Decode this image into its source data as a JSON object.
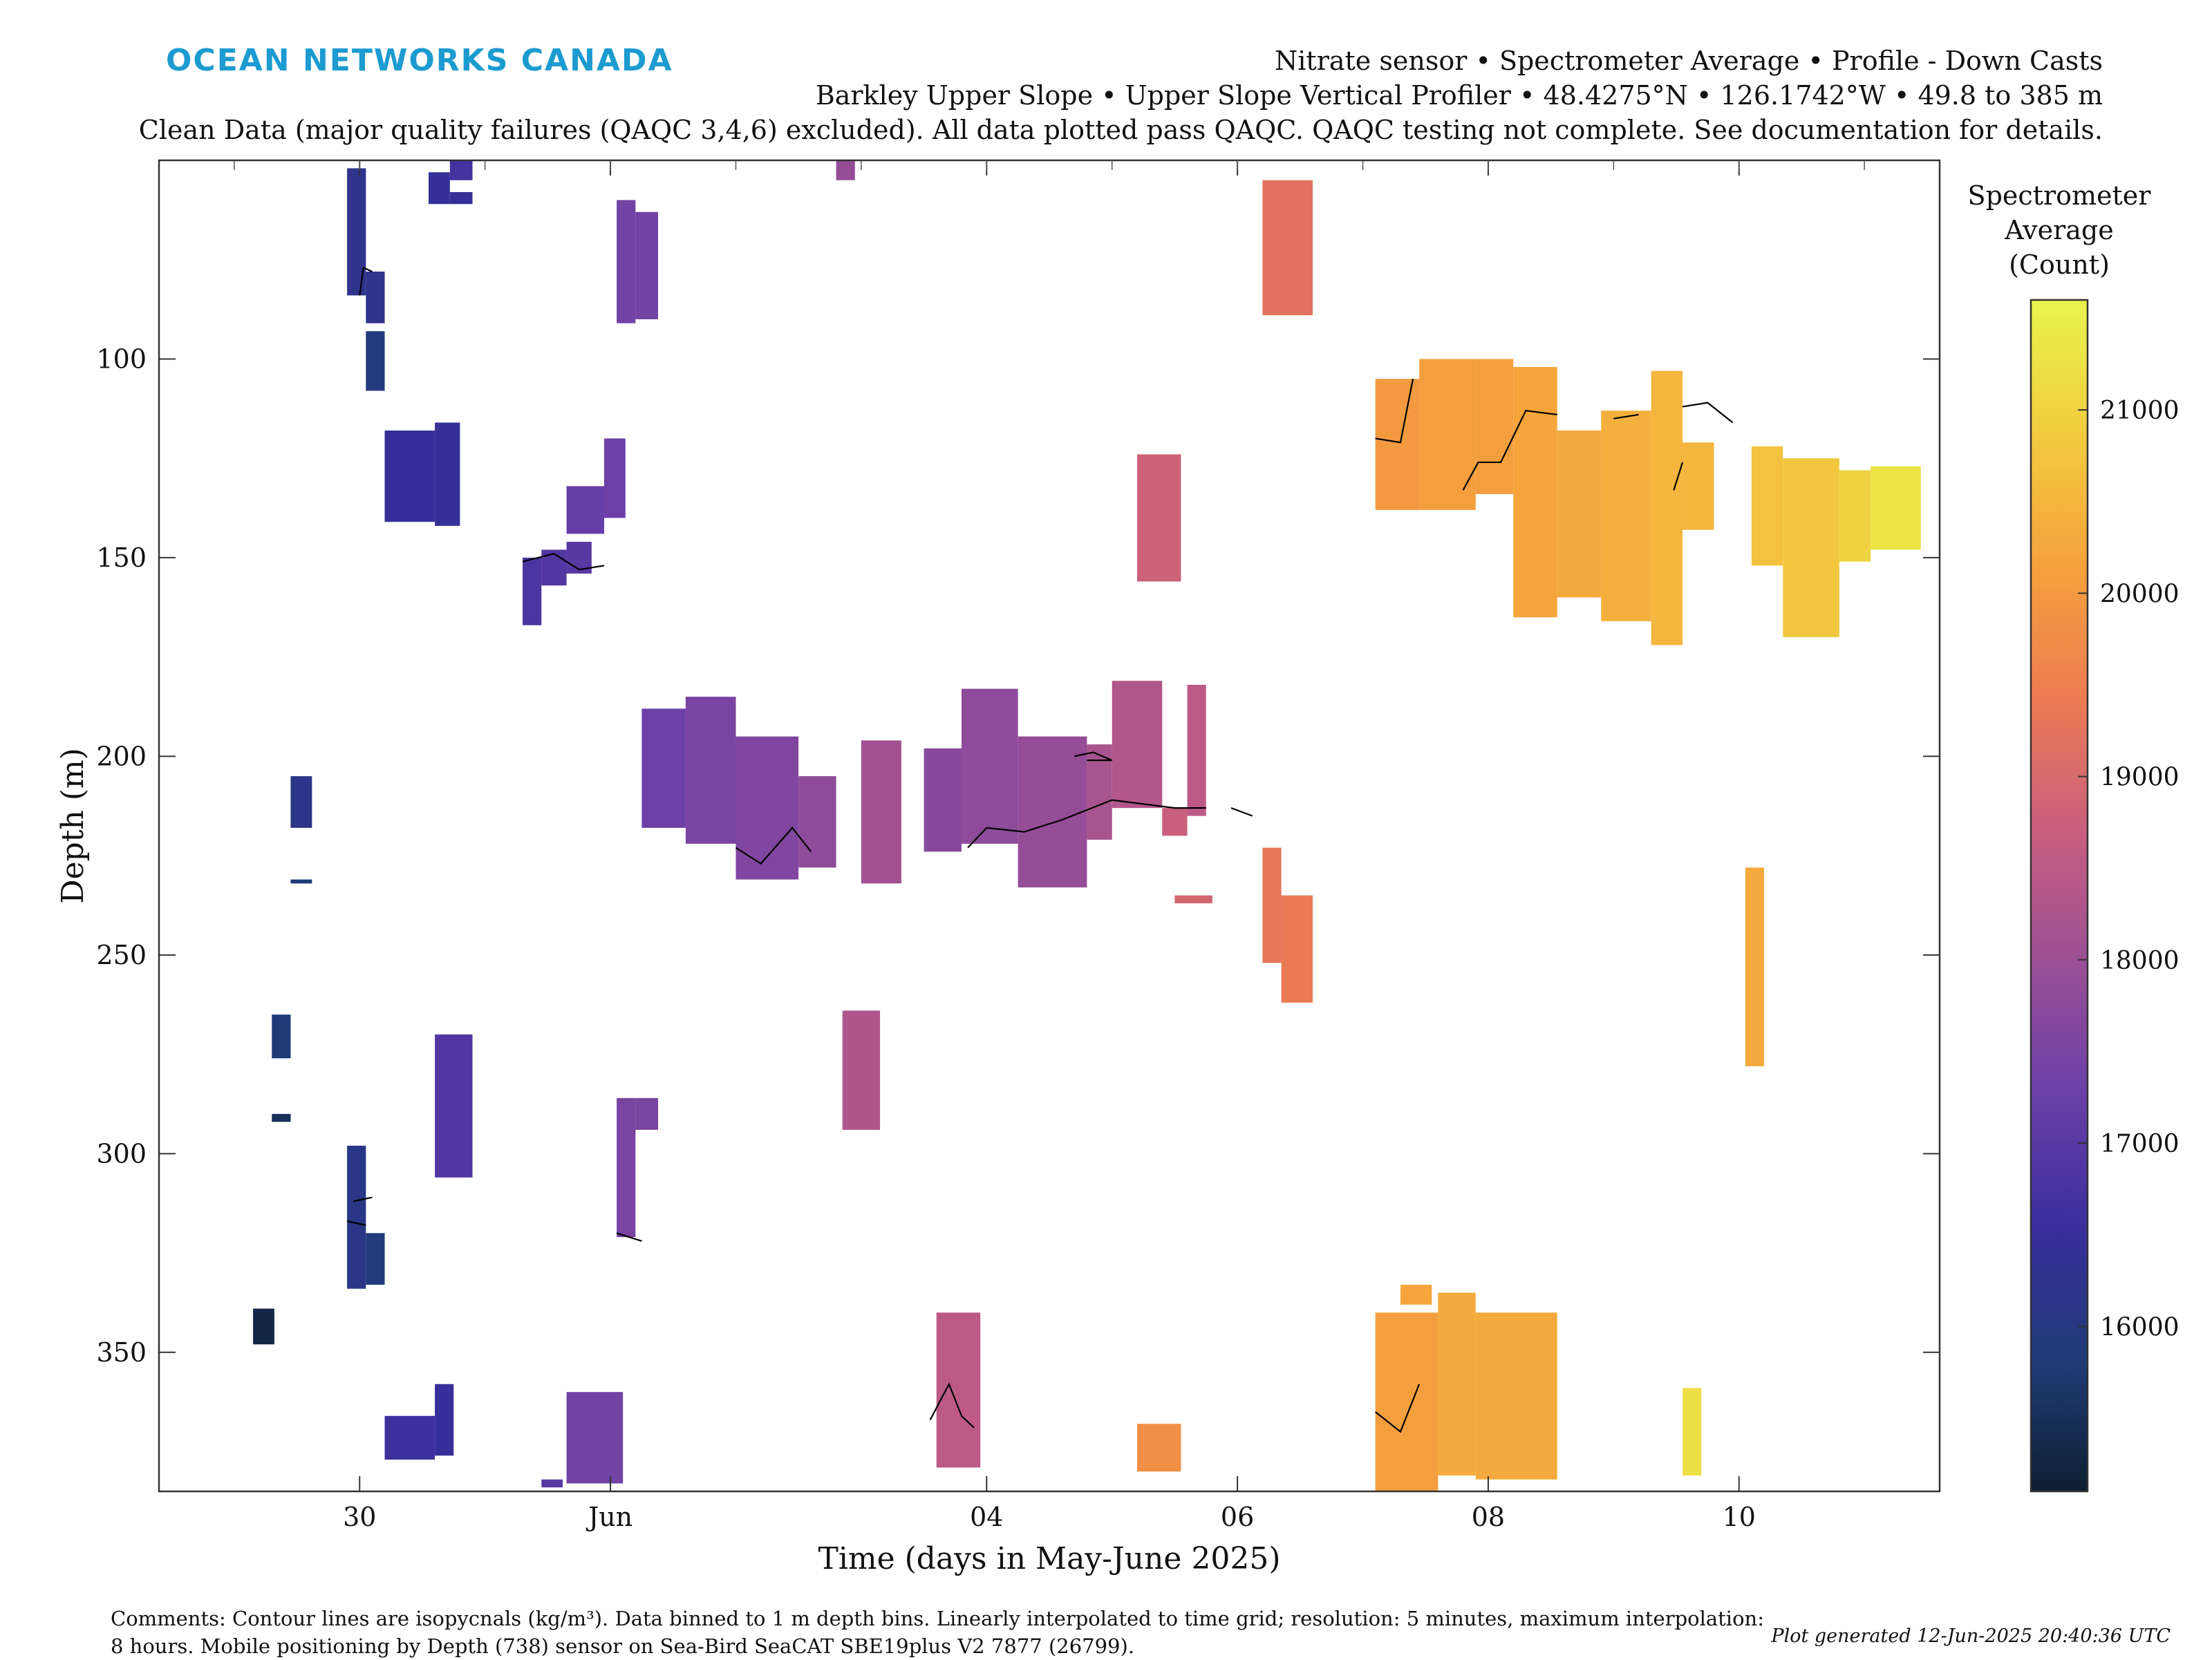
{
  "brand": "OCEAN NETWORKS CANADA",
  "header": {
    "line1": "Nitrate sensor • Spectrometer Average • Profile - Down Casts",
    "line2": "Barkley Upper Slope • Upper Slope Vertical Profiler • 48.4275°N • 126.1742°W • 49.8 to 385 m",
    "line3": "Clean Data (major quality failures (QAQC 3,4,6) excluded). All data plotted pass QAQC. QAQC testing not complete. See documentation for details."
  },
  "footer": {
    "comments_line1": "Comments: Contour lines are isopycnals (kg/m³). Data binned to 1 m depth bins. Linearly interpolated to time grid; resolution: 5 minutes, maximum interpolation:",
    "comments_line2": "8 hours. Mobile positioning by Depth (738) sensor on Sea-Bird SeaCAT SBE19plus V2 7877 (26799).",
    "generated": "Plot generated 12-Jun-2025 20:40:36 UTC"
  },
  "colors": {
    "colormap": [
      "#0d1f33",
      "#1f3c78",
      "#3a2f9c",
      "#6a3fa8",
      "#9b4f96",
      "#c95f7e",
      "#ec7c52",
      "#f5a23c",
      "#f2cc3e",
      "#e9f44e"
    ],
    "contour": "#000000",
    "brand": "#1c9bd0"
  },
  "chart_data": {
    "type": "heatmap",
    "xlabel": "Time (days in May-June 2025)",
    "ylabel": "Depth (m)",
    "xlim": [
      28.4,
      42.6
    ],
    "ylim": [
      385,
      50
    ],
    "y_reversed": true,
    "x_ticks": [
      {
        "x": 30,
        "label": "30"
      },
      {
        "x": 32,
        "label": "Jun"
      },
      {
        "x": 35,
        "label": "04"
      },
      {
        "x": 37,
        "label": "06"
      },
      {
        "x": 39,
        "label": "08"
      },
      {
        "x": 41,
        "label": "10"
      }
    ],
    "y_ticks": [
      100,
      150,
      200,
      250,
      300,
      350
    ],
    "colorbar": {
      "label_lines": [
        "Spectrometer",
        "Average",
        "(Count)"
      ],
      "range": [
        15100,
        21600
      ],
      "ticks": [
        16000,
        17000,
        18000,
        19000,
        20000,
        21000
      ]
    },
    "grid": false,
    "cells": [
      {
        "x0": 29.9,
        "x1": 30.05,
        "y0": 52,
        "y1": 84,
        "v": 16250
      },
      {
        "x0": 30.05,
        "x1": 30.2,
        "y0": 78,
        "y1": 91,
        "v": 16250
      },
      {
        "x0": 30.05,
        "x1": 30.2,
        "y0": 93,
        "y1": 108,
        "v": 15950
      },
      {
        "x0": 30.2,
        "x1": 30.6,
        "y0": 118,
        "y1": 141,
        "v": 16500
      },
      {
        "x0": 30.6,
        "x1": 30.8,
        "y0": 116,
        "y1": 142,
        "v": 16450
      },
      {
        "x0": 30.55,
        "x1": 30.72,
        "y0": 53,
        "y1": 61,
        "v": 16450
      },
      {
        "x0": 30.72,
        "x1": 30.9,
        "y0": 50,
        "y1": 55,
        "v": 16700
      },
      {
        "x0": 30.72,
        "x1": 30.9,
        "y0": 58,
        "y1": 61,
        "v": 16450
      },
      {
        "x0": 31.3,
        "x1": 31.45,
        "y0": 150,
        "y1": 167,
        "v": 16800
      },
      {
        "x0": 31.45,
        "x1": 31.65,
        "y0": 148,
        "y1": 157,
        "v": 16900
      },
      {
        "x0": 31.65,
        "x1": 31.85,
        "y0": 146,
        "y1": 154,
        "v": 17000
      },
      {
        "x0": 31.65,
        "x1": 31.95,
        "y0": 132,
        "y1": 144,
        "v": 17200
      },
      {
        "x0": 31.95,
        "x1": 32.12,
        "y0": 120,
        "y1": 140,
        "v": 17300
      },
      {
        "x0": 32.05,
        "x1": 32.2,
        "y0": 60,
        "y1": 91,
        "v": 17400
      },
      {
        "x0": 32.2,
        "x1": 32.38,
        "y0": 63,
        "y1": 90,
        "v": 17400
      },
      {
        "x0": 32.25,
        "x1": 32.6,
        "y0": 188,
        "y1": 218,
        "v": 17300
      },
      {
        "x0": 32.6,
        "x1": 33.0,
        "y0": 185,
        "y1": 222,
        "v": 17500
      },
      {
        "x0": 33.0,
        "x1": 33.5,
        "y0": 195,
        "y1": 231,
        "v": 17600
      },
      {
        "x0": 33.5,
        "x1": 33.8,
        "y0": 205,
        "y1": 228,
        "v": 17800
      },
      {
        "x0": 33.8,
        "x1": 33.95,
        "y0": 50,
        "y1": 55,
        "v": 17900
      },
      {
        "x0": 34.0,
        "x1": 34.32,
        "y0": 196,
        "y1": 232,
        "v": 18100
      },
      {
        "x0": 34.5,
        "x1": 34.8,
        "y0": 198,
        "y1": 224,
        "v": 17700
      },
      {
        "x0": 34.8,
        "x1": 35.25,
        "y0": 183,
        "y1": 222,
        "v": 17800
      },
      {
        "x0": 35.25,
        "x1": 35.8,
        "y0": 195,
        "y1": 233,
        "v": 17900
      },
      {
        "x0": 35.8,
        "x1": 36.0,
        "y0": 197,
        "y1": 221,
        "v": 18200
      },
      {
        "x0": 36.0,
        "x1": 36.4,
        "y0": 181,
        "y1": 213,
        "v": 18350
      },
      {
        "x0": 36.4,
        "x1": 36.6,
        "y0": 213,
        "y1": 220,
        "v": 18700
      },
      {
        "x0": 36.6,
        "x1": 36.75,
        "y0": 182,
        "y1": 215,
        "v": 18500
      },
      {
        "x0": 36.5,
        "x1": 36.8,
        "y0": 235,
        "y1": 237,
        "v": 18900
      },
      {
        "x0": 36.2,
        "x1": 36.55,
        "y0": 124,
        "y1": 156,
        "v": 18800
      },
      {
        "x0": 37.2,
        "x1": 37.35,
        "y0": 223,
        "y1": 252,
        "v": 19300
      },
      {
        "x0": 37.35,
        "x1": 37.6,
        "y0": 235,
        "y1": 262,
        "v": 19400
      },
      {
        "x0": 37.2,
        "x1": 37.6,
        "y0": 55,
        "y1": 89,
        "v": 19200
      },
      {
        "x0": 38.1,
        "x1": 38.45,
        "y0": 105,
        "y1": 138,
        "v": 20000
      },
      {
        "x0": 38.45,
        "x1": 38.9,
        "y0": 100,
        "y1": 138,
        "v": 20100
      },
      {
        "x0": 38.9,
        "x1": 39.2,
        "y0": 100,
        "y1": 134,
        "v": 20100
      },
      {
        "x0": 39.2,
        "x1": 39.55,
        "y0": 102,
        "y1": 165,
        "v": 20200
      },
      {
        "x0": 39.55,
        "x1": 39.9,
        "y0": 118,
        "y1": 160,
        "v": 20300
      },
      {
        "x0": 39.9,
        "x1": 40.3,
        "y0": 113,
        "y1": 166,
        "v": 20400
      },
      {
        "x0": 40.3,
        "x1": 40.55,
        "y0": 103,
        "y1": 172,
        "v": 20500
      },
      {
        "x0": 40.55,
        "x1": 40.8,
        "y0": 121,
        "y1": 143,
        "v": 20500
      },
      {
        "x0": 41.1,
        "x1": 41.35,
        "y0": 122,
        "y1": 152,
        "v": 20700
      },
      {
        "x0": 41.35,
        "x1": 41.8,
        "y0": 125,
        "y1": 170,
        "v": 20800
      },
      {
        "x0": 41.8,
        "x1": 42.05,
        "y0": 128,
        "y1": 151,
        "v": 21000
      },
      {
        "x0": 42.05,
        "x1": 42.45,
        "y0": 127,
        "y1": 148,
        "v": 21300
      },
      {
        "x0": 41.05,
        "x1": 41.2,
        "y0": 228,
        "y1": 278,
        "v": 20300
      },
      {
        "x0": 40.55,
        "x1": 40.7,
        "y0": 359,
        "y1": 381,
        "v": 21200
      },
      {
        "x0": 38.9,
        "x1": 39.55,
        "y0": 340,
        "y1": 382,
        "v": 20300
      },
      {
        "x0": 38.1,
        "x1": 38.6,
        "y0": 340,
        "y1": 385,
        "v": 20100
      },
      {
        "x0": 38.3,
        "x1": 38.55,
        "y0": 333,
        "y1": 338,
        "v": 20200
      },
      {
        "x0": 38.6,
        "x1": 38.9,
        "y0": 335,
        "y1": 381,
        "v": 20300
      },
      {
        "x0": 36.2,
        "x1": 36.55,
        "y0": 368,
        "y1": 380,
        "v": 19800
      },
      {
        "x0": 34.6,
        "x1": 34.95,
        "y0": 340,
        "y1": 379,
        "v": 18500
      },
      {
        "x0": 33.85,
        "x1": 34.15,
        "y0": 264,
        "y1": 294,
        "v": 18300
      },
      {
        "x0": 32.05,
        "x1": 32.2,
        "y0": 286,
        "y1": 321,
        "v": 17500
      },
      {
        "x0": 32.2,
        "x1": 32.38,
        "y0": 286,
        "y1": 294,
        "v": 17500
      },
      {
        "x0": 31.65,
        "x1": 32.1,
        "y0": 360,
        "y1": 383,
        "v": 17400
      },
      {
        "x0": 31.45,
        "x1": 31.62,
        "y0": 382,
        "y1": 384,
        "v": 17000
      },
      {
        "x0": 30.6,
        "x1": 30.9,
        "y0": 270,
        "y1": 306,
        "v": 16900
      },
      {
        "x0": 30.2,
        "x1": 30.6,
        "y0": 366,
        "y1": 377,
        "v": 16600
      },
      {
        "x0": 30.6,
        "x1": 30.75,
        "y0": 358,
        "y1": 376,
        "v": 16500
      },
      {
        "x0": 29.9,
        "x1": 30.05,
        "y0": 298,
        "y1": 334,
        "v": 16100
      },
      {
        "x0": 30.05,
        "x1": 30.2,
        "y0": 320,
        "y1": 333,
        "v": 15900
      },
      {
        "x0": 29.45,
        "x1": 29.62,
        "y0": 205,
        "y1": 218,
        "v": 16150
      },
      {
        "x0": 29.45,
        "x1": 29.62,
        "y0": 231,
        "y1": 232,
        "v": 15800
      },
      {
        "x0": 29.3,
        "x1": 29.45,
        "y0": 265,
        "y1": 276,
        "v": 15800
      },
      {
        "x0": 29.3,
        "x1": 29.45,
        "y0": 290,
        "y1": 292,
        "v": 15500
      },
      {
        "x0": 29.15,
        "x1": 29.32,
        "y0": 339,
        "y1": 348,
        "v": 15300
      }
    ],
    "contours": [
      [
        [
          30.0,
          84
        ],
        [
          30.03,
          77
        ],
        [
          30.1,
          78
        ]
      ],
      [
        [
          31.3,
          151
        ],
        [
          31.55,
          149
        ],
        [
          31.75,
          153
        ],
        [
          31.95,
          152
        ]
      ],
      [
        [
          33.0,
          223
        ],
        [
          33.2,
          227
        ],
        [
          33.45,
          218
        ],
        [
          33.6,
          224
        ]
      ],
      [
        [
          34.55,
          367
        ],
        [
          34.7,
          358
        ],
        [
          34.8,
          366
        ],
        [
          34.9,
          369
        ]
      ],
      [
        [
          34.85,
          223
        ],
        [
          35.0,
          218
        ],
        [
          35.3,
          219
        ],
        [
          35.6,
          216
        ],
        [
          36.0,
          211
        ],
        [
          36.5,
          213
        ],
        [
          36.75,
          213
        ]
      ],
      [
        [
          35.7,
          200
        ],
        [
          35.85,
          199
        ],
        [
          36.0,
          201
        ],
        [
          35.8,
          201
        ]
      ],
      [
        [
          36.95,
          213
        ],
        [
          37.12,
          215
        ]
      ],
      [
        [
          38.1,
          120
        ],
        [
          38.3,
          121
        ],
        [
          38.4,
          105
        ]
      ],
      [
        [
          38.1,
          365
        ],
        [
          38.3,
          370
        ],
        [
          38.45,
          358
        ]
      ],
      [
        [
          38.8,
          133
        ],
        [
          38.92,
          126
        ],
        [
          39.1,
          126
        ],
        [
          39.3,
          113
        ],
        [
          39.55,
          114
        ]
      ],
      [
        [
          40.0,
          115
        ],
        [
          40.2,
          114
        ]
      ],
      [
        [
          40.48,
          133
        ],
        [
          40.55,
          126
        ]
      ],
      [
        [
          40.55,
          112
        ],
        [
          40.75,
          111
        ],
        [
          40.95,
          116
        ]
      ],
      [
        [
          32.05,
          320
        ],
        [
          32.25,
          322
        ]
      ],
      [
        [
          29.95,
          312
        ],
        [
          30.1,
          311
        ]
      ],
      [
        [
          29.9,
          317
        ],
        [
          30.05,
          318
        ]
      ]
    ]
  }
}
